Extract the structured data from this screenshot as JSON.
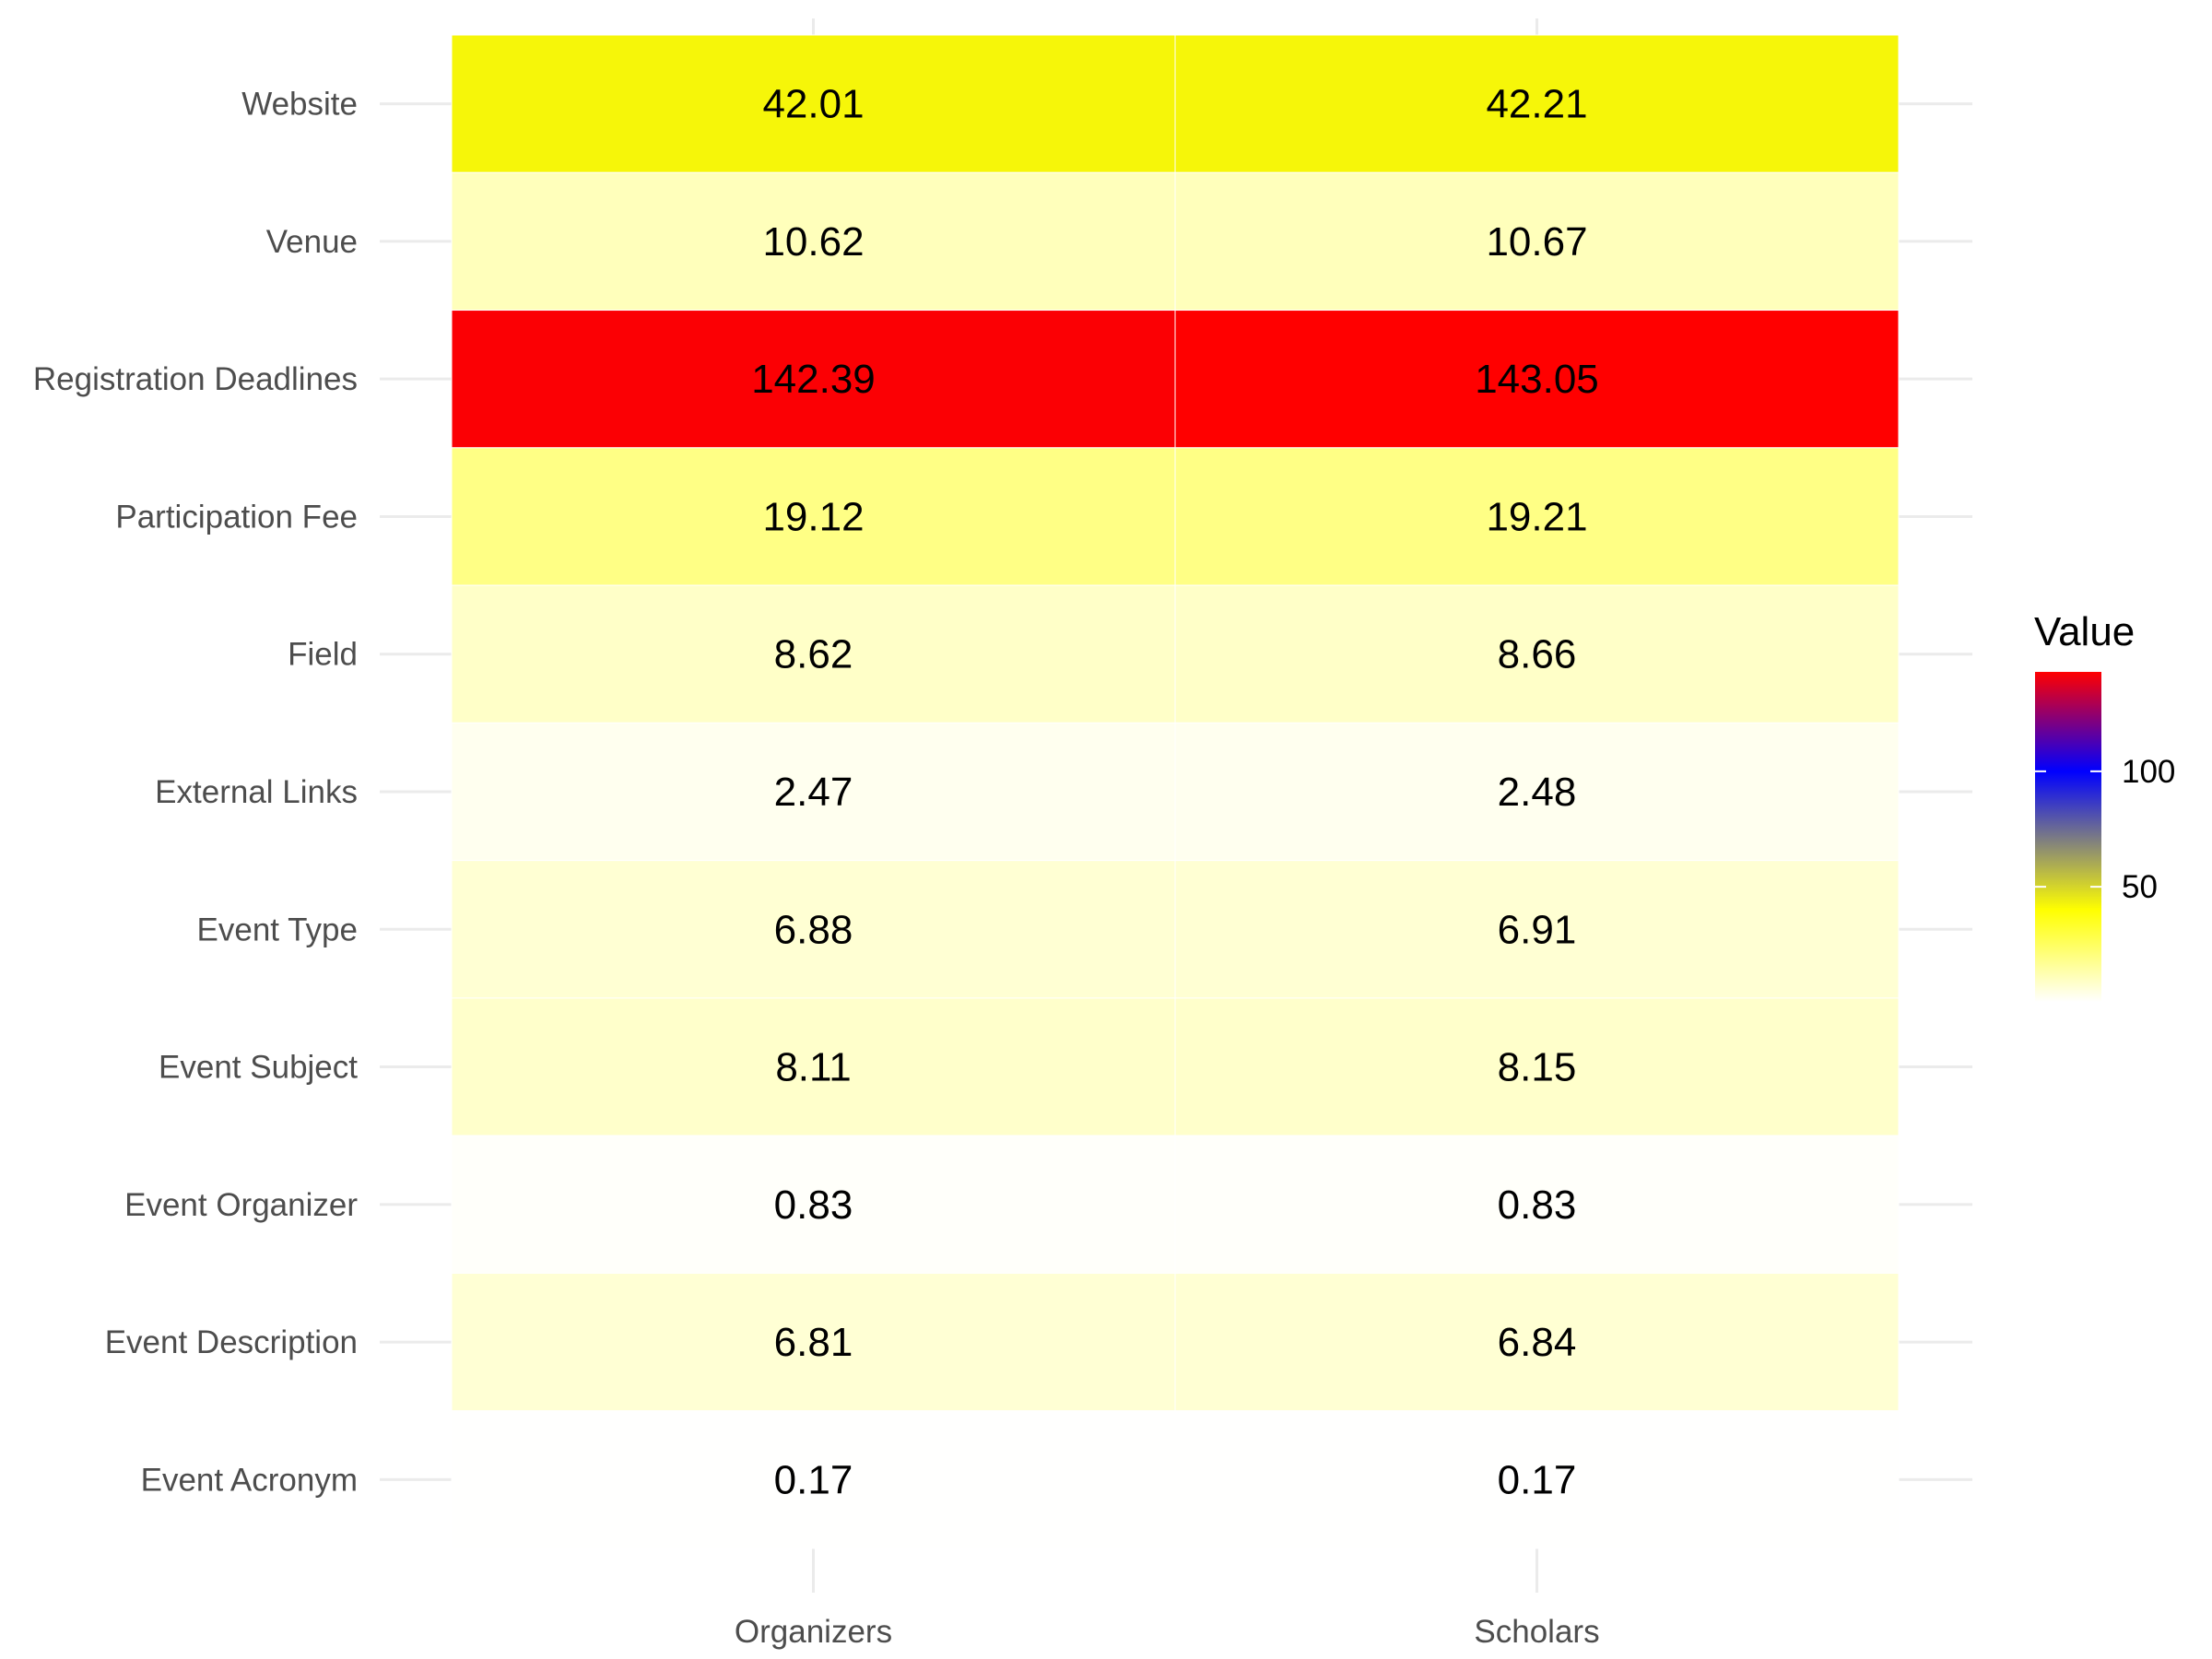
{
  "chart_data": {
    "type": "heatmap",
    "x_categories": [
      "Organizers",
      "Scholars"
    ],
    "y_categories": [
      "Website",
      "Venue",
      "Registration Deadlines",
      "Participation Fee",
      "Field",
      "External Links",
      "Event Type",
      "Event Subject",
      "Event Organizer",
      "Event Description",
      "Event Acronym"
    ],
    "values": [
      [
        42.01,
        42.21
      ],
      [
        10.62,
        10.67
      ],
      [
        142.39,
        143.05
      ],
      [
        19.12,
        19.21
      ],
      [
        8.62,
        8.66
      ],
      [
        2.47,
        2.48
      ],
      [
        6.88,
        6.91
      ],
      [
        8.11,
        8.15
      ],
      [
        0.83,
        0.83
      ],
      [
        6.81,
        6.84
      ],
      [
        0.17,
        0.17
      ]
    ],
    "value_labels": [
      [
        "42.01",
        "42.21"
      ],
      [
        "10.62",
        "10.67"
      ],
      [
        "142.39",
        "143.05"
      ],
      [
        "19.12",
        "19.21"
      ],
      [
        "8.62",
        "8.66"
      ],
      [
        "2.47",
        "2.48"
      ],
      [
        "6.88",
        "6.91"
      ],
      [
        "8.11",
        "8.15"
      ],
      [
        "0.83",
        "0.83"
      ],
      [
        "6.81",
        "6.84"
      ],
      [
        "0.17",
        "0.17"
      ]
    ],
    "legend": {
      "title": "Value",
      "placement": "right",
      "ticks": [
        50,
        100
      ],
      "range": [
        0.17,
        143.05
      ],
      "color_stops": [
        {
          "value": 0,
          "color": "#ffffff"
        },
        {
          "value": 40,
          "color": "#ffff00"
        },
        {
          "value": 100,
          "color": "#0000ff"
        },
        {
          "value": 143.05,
          "color": "#ff0000"
        }
      ]
    },
    "grid": true
  }
}
